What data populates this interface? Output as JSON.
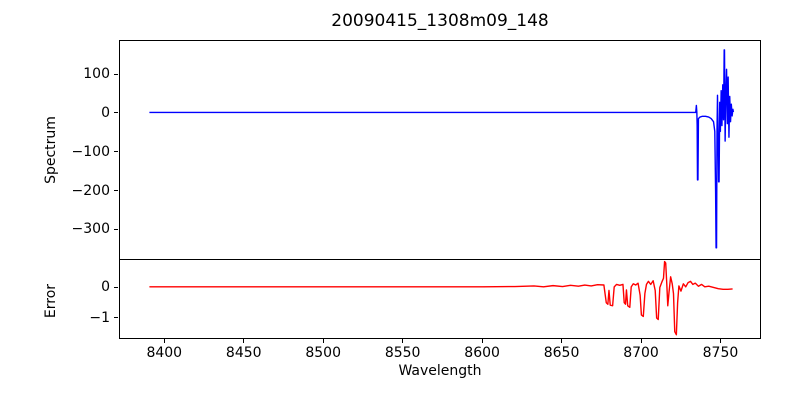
{
  "figure": {
    "title": "20090415_1308m09_148",
    "background": "#ffffff",
    "text_color": "#000000"
  },
  "chart_data": [
    {
      "id": "spectrum-panel",
      "type": "line",
      "title": "20090415_1308m09_148",
      "ylabel": "Spectrum",
      "xlabel": "",
      "grid": false,
      "legend": "none",
      "xlim": [
        8371.5,
        8775.5
      ],
      "ylim": [
        -379,
        188
      ],
      "yticks": [
        100,
        0,
        -100,
        -200,
        -300
      ],
      "xticks": [],
      "series": [
        {
          "name": "spectrum",
          "color": "#0000ff",
          "linewidth": 1.4,
          "points": [
            [
              8390,
              4
            ],
            [
              8450,
              4
            ],
            [
              8500,
              4
            ],
            [
              8550,
              4
            ],
            [
              8600,
              4
            ],
            [
              8650,
              4
            ],
            [
              8700,
              4
            ],
            [
              8725,
              4
            ],
            [
              8733.8,
              4
            ],
            [
              8734.2,
              22
            ],
            [
              8734.5,
              4
            ],
            [
              8734.7,
              -30
            ],
            [
              8734.9,
              -170
            ],
            [
              8735.2,
              -170
            ],
            [
              8735.5,
              -12
            ],
            [
              8736.5,
              -8
            ],
            [
              8738,
              -6
            ],
            [
              8740,
              -6
            ],
            [
              8742,
              -8
            ],
            [
              8743.5,
              -12
            ],
            [
              8745,
              -20
            ],
            [
              8745.8,
              -45
            ],
            [
              8746.3,
              -200
            ],
            [
              8746.6,
              -345
            ],
            [
              8746.9,
              -345
            ],
            [
              8747.2,
              -40
            ],
            [
              8747.5,
              48
            ],
            [
              8747.9,
              -60
            ],
            [
              8748.2,
              -175
            ],
            [
              8748.5,
              -175
            ],
            [
              8748.9,
              30
            ],
            [
              8749.3,
              -45
            ],
            [
              8749.8,
              60
            ],
            [
              8750.3,
              -30
            ],
            [
              8750.8,
              75
            ],
            [
              8751.3,
              -15
            ],
            [
              8751.7,
              165
            ],
            [
              8751.9,
              165
            ],
            [
              8752.3,
              -70
            ],
            [
              8752.7,
              40
            ],
            [
              8753.2,
              115
            ],
            [
              8753.7,
              -25
            ],
            [
              8754.2,
              95
            ],
            [
              8754.7,
              -60
            ],
            [
              8755.2,
              45
            ],
            [
              8755.7,
              -20
            ],
            [
              8756.2,
              25
            ],
            [
              8756.7,
              -5
            ],
            [
              8757.2,
              12
            ],
            [
              8757.5,
              5
            ]
          ]
        }
      ]
    },
    {
      "id": "error-panel",
      "type": "line",
      "title": "",
      "ylabel": "Error",
      "xlabel": "Wavelength",
      "grid": false,
      "legend": "none",
      "xlim": [
        8371.5,
        8775.5
      ],
      "ylim": [
        -1.69,
        0.9
      ],
      "yticks": [
        0,
        -1
      ],
      "xticks": [
        8400,
        8450,
        8500,
        8550,
        8600,
        8650,
        8700,
        8750
      ],
      "series": [
        {
          "name": "error",
          "color": "#ff0000",
          "linewidth": 1.4,
          "points": [
            [
              8390,
              0.02
            ],
            [
              8450,
              0.02
            ],
            [
              8500,
              0.02
            ],
            [
              8560,
              0.02
            ],
            [
              8600,
              0.02
            ],
            [
              8620,
              0.03
            ],
            [
              8632,
              0.05
            ],
            [
              8638,
              0.02
            ],
            [
              8644,
              0.06
            ],
            [
              8650,
              0.03
            ],
            [
              8655,
              0.07
            ],
            [
              8660,
              0.04
            ],
            [
              8664,
              0.08
            ],
            [
              8668,
              0.05
            ],
            [
              8672,
              0.09
            ],
            [
              8676,
              0.08
            ],
            [
              8677.5,
              -0.5
            ],
            [
              8678.5,
              -0.55
            ],
            [
              8679.2,
              -0.1
            ],
            [
              8680,
              -0.58
            ],
            [
              8681.5,
              -0.6
            ],
            [
              8682.5,
              0.02
            ],
            [
              8684,
              0.1
            ],
            [
              8686,
              0.07
            ],
            [
              8688,
              0.1
            ],
            [
              8688.8,
              -0.5
            ],
            [
              8689.6,
              -0.55
            ],
            [
              8690.2,
              -0.08
            ],
            [
              8691,
              -0.6
            ],
            [
              8692.3,
              -0.65
            ],
            [
              8693.2,
              0.02
            ],
            [
              8694.5,
              0.12
            ],
            [
              8696,
              0.08
            ],
            [
              8697.5,
              0.14
            ],
            [
              8698.8,
              -0.25
            ],
            [
              8699.6,
              -0.9
            ],
            [
              8700.8,
              -0.95
            ],
            [
              8701.8,
              -0.2
            ],
            [
              8702.8,
              0.1
            ],
            [
              8704,
              0.2
            ],
            [
              8705.5,
              0.1
            ],
            [
              8707,
              0.22
            ],
            [
              8708.3,
              -0.1
            ],
            [
              8709.2,
              -1.0
            ],
            [
              8710.2,
              -1.05
            ],
            [
              8711.2,
              0.0
            ],
            [
              8712.5,
              0.18
            ],
            [
              8713.5,
              0.3
            ],
            [
              8714.2,
              0.85
            ],
            [
              8714.9,
              0.8
            ],
            [
              8715.6,
              0.1
            ],
            [
              8716.2,
              -0.6
            ],
            [
              8717,
              -0.15
            ],
            [
              8718,
              0.35
            ],
            [
              8719,
              0.12
            ],
            [
              8719.8,
              -0.2
            ],
            [
              8720.6,
              -1.45
            ],
            [
              8721.6,
              -1.55
            ],
            [
              8722.4,
              -0.5
            ],
            [
              8723.2,
              0.05
            ],
            [
              8724.5,
              -0.12
            ],
            [
              8726,
              0.12
            ],
            [
              8727.5,
              0.02
            ],
            [
              8729,
              0.16
            ],
            [
              8730.5,
              0.2
            ],
            [
              8732,
              0.1
            ],
            [
              8733.5,
              0.14
            ],
            [
              8735.5,
              0.04
            ],
            [
              8737.5,
              0.1
            ],
            [
              8739.5,
              0.02
            ],
            [
              8742,
              0.04
            ],
            [
              8745,
              0.0
            ],
            [
              8748,
              -0.04
            ],
            [
              8751,
              -0.06
            ],
            [
              8754,
              -0.06
            ],
            [
              8757,
              -0.05
            ]
          ]
        }
      ]
    }
  ]
}
